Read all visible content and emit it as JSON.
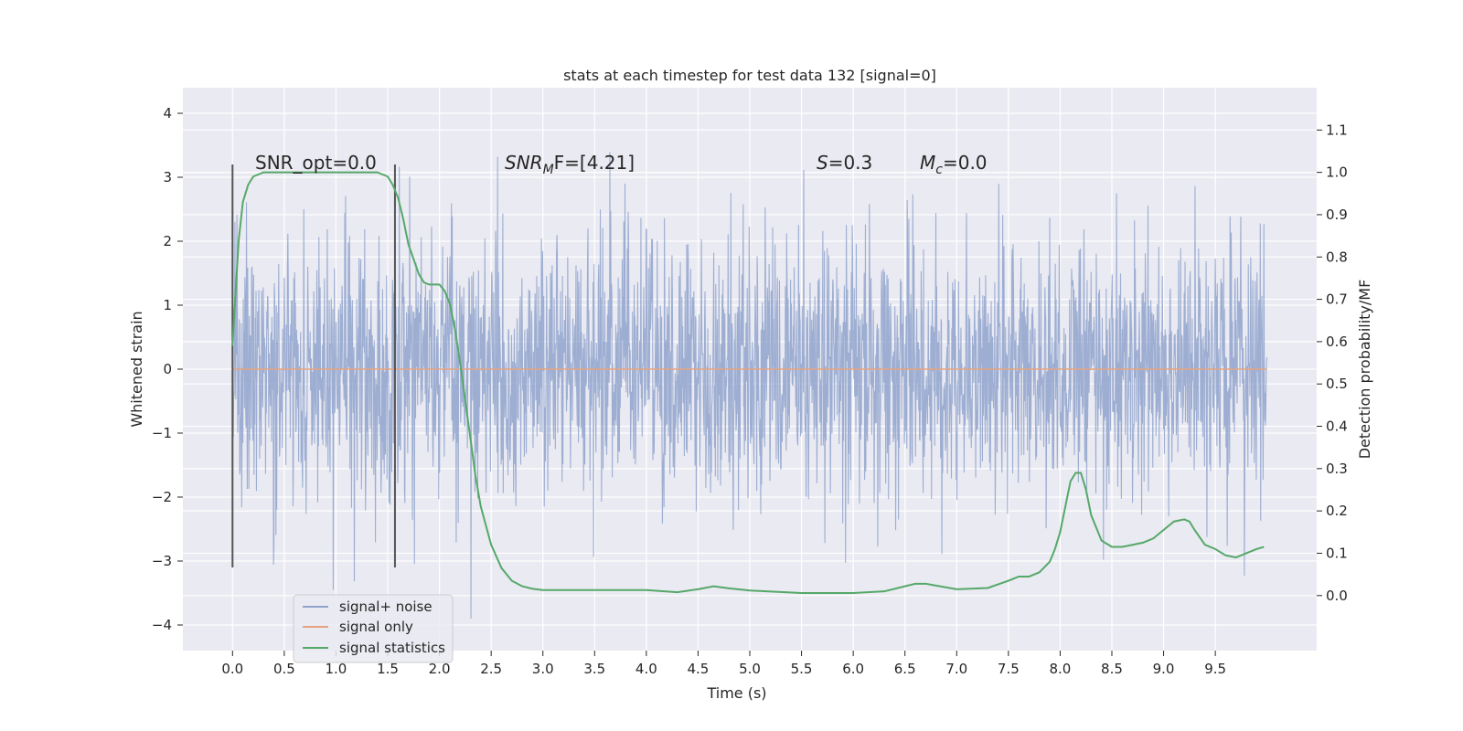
{
  "chart_data": {
    "type": "line",
    "title": "stats at each timestep for test data 132 [signal=0]",
    "xlabel": "Time (s)",
    "ylabel_left": "Whitened strain",
    "ylabel_right": "Detection probability/MF",
    "xlim": [
      -0.48,
      10.48
    ],
    "ylim_left": [
      -4.4,
      4.4
    ],
    "ylim_right": [
      -0.13,
      1.2
    ],
    "x_ticks": [
      0.0,
      0.5,
      1.0,
      1.5,
      2.0,
      2.5,
      3.0,
      3.5,
      4.0,
      4.5,
      5.0,
      5.5,
      6.0,
      6.5,
      7.0,
      7.5,
      8.0,
      8.5,
      9.0,
      9.5
    ],
    "x_tick_labels": [
      "0.0",
      "0.5",
      "1.0",
      "1.5",
      "2.0",
      "2.5",
      "3.0",
      "3.5",
      "4.0",
      "4.5",
      "5.0",
      "5.5",
      "6.0",
      "6.5",
      "7.0",
      "7.5",
      "8.0",
      "8.5",
      "9.0",
      "9.5"
    ],
    "y_left_ticks": [
      -4,
      -3,
      -2,
      -1,
      0,
      1,
      2,
      3,
      4
    ],
    "y_left_tick_labels": [
      "−4",
      "−3",
      "−2",
      "−1",
      "0",
      "1",
      "2",
      "3",
      "4"
    ],
    "y_right_ticks": [
      0.0,
      0.1,
      0.2,
      0.3,
      0.4,
      0.5,
      0.6,
      0.7,
      0.8,
      0.9,
      1.0,
      1.1
    ],
    "y_right_tick_labels": [
      "0.0",
      "0.1",
      "0.2",
      "0.3",
      "0.4",
      "0.5",
      "0.6",
      "0.7",
      "0.8",
      "0.9",
      "1.0",
      "1.1"
    ],
    "grid": true,
    "legend_position": "lower-left",
    "series": [
      {
        "name": "signal+ noise",
        "axis": "left",
        "color": "#8fa3cc",
        "note_visible": "dense noise band",
        "x_range": [
          0.0,
          10.0
        ],
        "amplitude_peak": [
          -3.9,
          4.05
        ]
      },
      {
        "name": "signal only",
        "axis": "left",
        "color": "#e6a37f",
        "x": [
          0.0,
          10.0
        ],
        "y": [
          0.0,
          0.0
        ]
      },
      {
        "name": "signal statistics",
        "axis": "right",
        "color": "#55a868",
        "x": [
          0.0,
          0.03,
          0.06,
          0.1,
          0.15,
          0.2,
          0.3,
          0.5,
          0.8,
          1.0,
          1.2,
          1.3,
          1.4,
          1.5,
          1.55,
          1.6,
          1.65,
          1.7,
          1.8,
          1.85,
          1.9,
          2.0,
          2.05,
          2.1,
          2.15,
          2.2,
          2.25,
          2.3,
          2.35,
          2.4,
          2.5,
          2.6,
          2.7,
          2.8,
          2.9,
          3.0,
          3.5,
          4.0,
          4.3,
          4.5,
          4.65,
          4.8,
          5.0,
          5.5,
          6.0,
          6.3,
          6.5,
          6.6,
          6.7,
          7.0,
          7.3,
          7.5,
          7.6,
          7.7,
          7.8,
          7.9,
          7.95,
          8.0,
          8.05,
          8.1,
          8.15,
          8.2,
          8.25,
          8.3,
          8.4,
          8.5,
          8.6,
          8.7,
          8.8,
          8.9,
          9.0,
          9.1,
          9.2,
          9.25,
          9.3,
          9.4,
          9.5,
          9.6,
          9.7,
          9.8,
          9.9,
          9.97
        ],
        "y": [
          0.59,
          0.72,
          0.84,
          0.93,
          0.97,
          0.99,
          1.0,
          1.0,
          1.0,
          1.0,
          1.0,
          1.0,
          1.0,
          0.99,
          0.97,
          0.94,
          0.89,
          0.83,
          0.76,
          0.74,
          0.735,
          0.735,
          0.72,
          0.69,
          0.63,
          0.55,
          0.46,
          0.37,
          0.28,
          0.21,
          0.12,
          0.065,
          0.035,
          0.022,
          0.016,
          0.013,
          0.013,
          0.013,
          0.008,
          0.015,
          0.022,
          0.017,
          0.012,
          0.006,
          0.006,
          0.01,
          0.022,
          0.028,
          0.028,
          0.015,
          0.018,
          0.035,
          0.045,
          0.045,
          0.055,
          0.08,
          0.11,
          0.15,
          0.21,
          0.27,
          0.29,
          0.29,
          0.25,
          0.19,
          0.13,
          0.115,
          0.115,
          0.12,
          0.125,
          0.135,
          0.155,
          0.175,
          0.18,
          0.175,
          0.155,
          0.12,
          0.11,
          0.095,
          0.09,
          0.1,
          0.11,
          0.115
        ]
      }
    ],
    "vertical_markers": {
      "x": [
        0.0,
        1.57
      ],
      "y_range": [
        -3.1,
        3.2
      ],
      "color": "#555555"
    },
    "annotations": {
      "snr_opt": "SNR_opt=0.0",
      "snr_mf_prefix": "SNR",
      "snr_mf_sub": "M",
      "snr_mf_suffix": "F=[4.21]",
      "s": "S",
      "s_value": "=0.3",
      "mc": "M",
      "mc_sub": "c",
      "mc_value": "=0.0"
    },
    "colors": {
      "plot_bg": "#eaeaf2",
      "grid": "#ffffff",
      "text": "#262626"
    }
  }
}
